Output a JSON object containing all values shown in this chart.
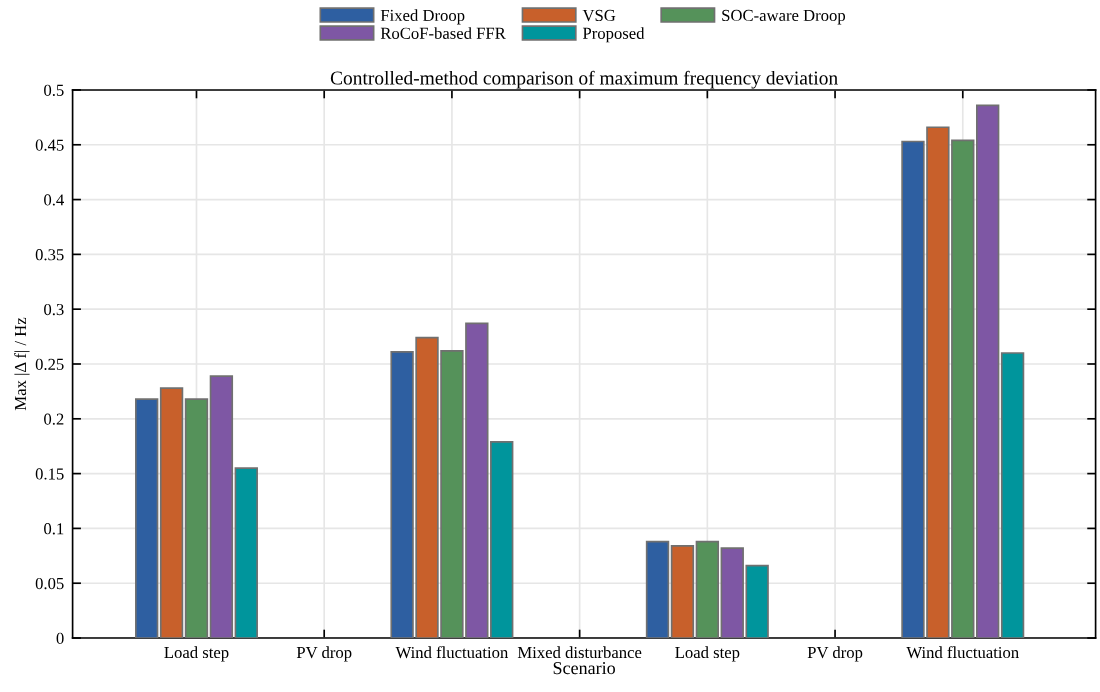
{
  "chart_data": {
    "type": "bar",
    "title": "Controlled-method comparison of maximum frequency deviation",
    "xlabel": "Scenario",
    "ylabel": "Max |Δ f| / Hz",
    "categories": [
      "Load step",
      "PV drop",
      "Wind fluctuation",
      "Mixed disturbance",
      "Load step",
      "PV drop",
      "Wind fluctuation"
    ],
    "series": [
      {
        "name": "Fixed Droop",
        "color": "#2e5fa1",
        "values": [
          0.218,
          null,
          0.261,
          null,
          0.088,
          null,
          0.453
        ]
      },
      {
        "name": "VSG",
        "color": "#c8602b",
        "values": [
          0.228,
          null,
          0.274,
          null,
          0.084,
          null,
          0.466
        ]
      },
      {
        "name": "SOC-aware Droop",
        "color": "#55925a",
        "values": [
          0.218,
          null,
          0.262,
          null,
          0.088,
          null,
          0.454
        ]
      },
      {
        "name": "RoCoF-based FFR",
        "color": "#7e57a4",
        "values": [
          0.239,
          null,
          0.287,
          null,
          0.082,
          null,
          0.486
        ]
      },
      {
        "name": "Proposed",
        "color": "#00959c",
        "values": [
          0.155,
          null,
          0.179,
          null,
          0.066,
          null,
          0.26
        ]
      }
    ],
    "ylim": [
      0,
      0.5
    ],
    "yticks": [
      0,
      0.05,
      0.1,
      0.15,
      0.2,
      0.25,
      0.3,
      0.35,
      0.4,
      0.45,
      0.5
    ],
    "grid": true,
    "legend": "top"
  }
}
